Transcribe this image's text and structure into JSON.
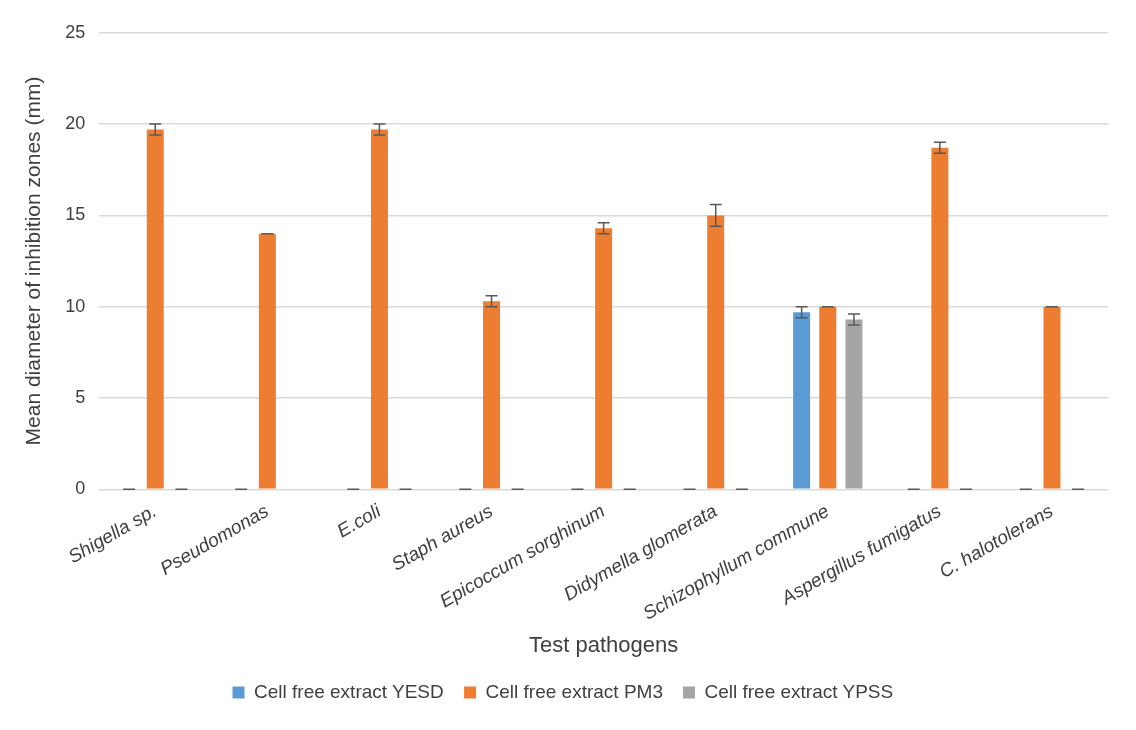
{
  "chart_data": {
    "type": "bar",
    "xlabel": "Test pathogens",
    "ylabel": "Mean diameter of inhibition zones (mm)",
    "categories": [
      "Shigella sp.",
      "Pseudomonas",
      "E.coli",
      "Staph aureus",
      "Epicoccum sorghinum",
      "Didymella glomerata",
      "Schizophyllum commune",
      "Aspergillus fumigatus",
      "C. halotolerans"
    ],
    "series": [
      {
        "name": "Cell free extract YESD",
        "color": "#5b9bd5",
        "values": [
          0,
          0,
          0,
          0,
          0,
          0,
          9.7,
          0,
          0
        ],
        "errors": [
          0,
          0,
          0,
          0,
          0,
          0,
          0.3,
          0,
          0
        ]
      },
      {
        "name": "Cell free extract PM3",
        "color": "#ed7d31",
        "values": [
          19.7,
          14.0,
          19.7,
          10.3,
          14.3,
          15.0,
          10.0,
          18.7,
          10.0
        ],
        "errors": [
          0.3,
          0,
          0.3,
          0.3,
          0.3,
          0.6,
          0,
          0.3,
          0
        ]
      },
      {
        "name": "Cell free extract YPSS",
        "color": "#a5a5a5",
        "values": [
          0,
          null,
          0,
          0,
          0,
          0,
          9.3,
          0,
          0
        ],
        "errors": [
          0,
          null,
          0,
          0,
          0,
          0,
          0.3,
          0,
          0
        ]
      }
    ],
    "ylim": [
      0,
      25
    ],
    "yticks": [
      0,
      5,
      10,
      15,
      20,
      25
    ],
    "grid": "y",
    "legend": "bottom"
  }
}
